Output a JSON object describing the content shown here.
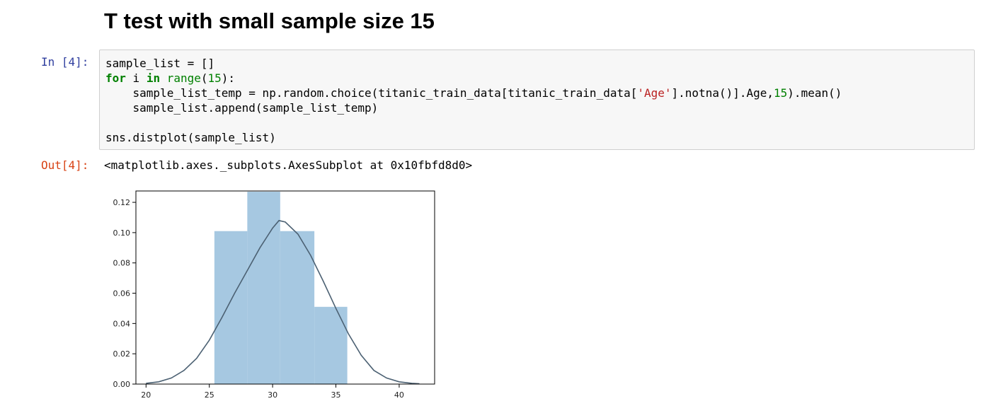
{
  "heading": "T test with small sample size 15",
  "input_cell": {
    "prompt": "In [4]:",
    "code_lines": [
      [
        {
          "t": "sample_list = []",
          "c": ""
        }
      ],
      [
        {
          "t": "for",
          "c": "kw"
        },
        {
          "t": " i ",
          "c": ""
        },
        {
          "t": "in",
          "c": "kw"
        },
        {
          "t": " ",
          "c": ""
        },
        {
          "t": "range",
          "c": "bi"
        },
        {
          "t": "(",
          "c": ""
        },
        {
          "t": "15",
          "c": "num"
        },
        {
          "t": "):",
          "c": ""
        }
      ],
      [
        {
          "t": "    sample_list_temp = np.random.choice(titanic_train_data[titanic_train_data[",
          "c": ""
        },
        {
          "t": "'Age'",
          "c": "str"
        },
        {
          "t": "].notna()].Age,",
          "c": ""
        },
        {
          "t": "15",
          "c": "num"
        },
        {
          "t": ").mean()",
          "c": ""
        }
      ],
      [
        {
          "t": "    sample_list.append(sample_list_temp)",
          "c": ""
        }
      ],
      [
        {
          "t": "",
          "c": ""
        }
      ],
      [
        {
          "t": "sns.distplot(sample_list)",
          "c": ""
        }
      ]
    ]
  },
  "output_cell": {
    "prompt": "Out[4]:",
    "text": "<matplotlib.axes._subplots.AxesSubplot at 0x10fbfd8d0>"
  },
  "chart_data": {
    "type": "bar",
    "title": "",
    "xlabel": "",
    "ylabel": "",
    "xlim": [
      19.2,
      42.8
    ],
    "ylim": [
      0,
      0.1275
    ],
    "x_ticks": [
      20,
      25,
      30,
      35,
      40
    ],
    "y_ticks": [
      0.0,
      0.02,
      0.04,
      0.06,
      0.08,
      0.1,
      0.12
    ],
    "histogram": {
      "bin_edges": [
        25.4,
        28.0,
        30.6,
        33.3,
        35.9
      ],
      "values": [
        0.101,
        0.127,
        0.101,
        0.051
      ]
    },
    "kde_curve": {
      "x": [
        20.0,
        21.0,
        22.0,
        23.0,
        24.0,
        25.0,
        26.0,
        27.0,
        28.0,
        29.0,
        30.0,
        30.5,
        31.0,
        32.0,
        33.0,
        34.0,
        35.0,
        36.0,
        37.0,
        38.0,
        39.0,
        40.0,
        41.0,
        41.6
      ],
      "y": [
        0.0005,
        0.0015,
        0.004,
        0.009,
        0.017,
        0.029,
        0.044,
        0.06,
        0.075,
        0.09,
        0.103,
        0.108,
        0.107,
        0.099,
        0.085,
        0.068,
        0.05,
        0.033,
        0.019,
        0.009,
        0.004,
        0.0015,
        0.0005,
        0.0002
      ]
    },
    "colors": {
      "bars": "#a6c8e1",
      "kde": "#4c6173",
      "axis": "#000000"
    }
  }
}
